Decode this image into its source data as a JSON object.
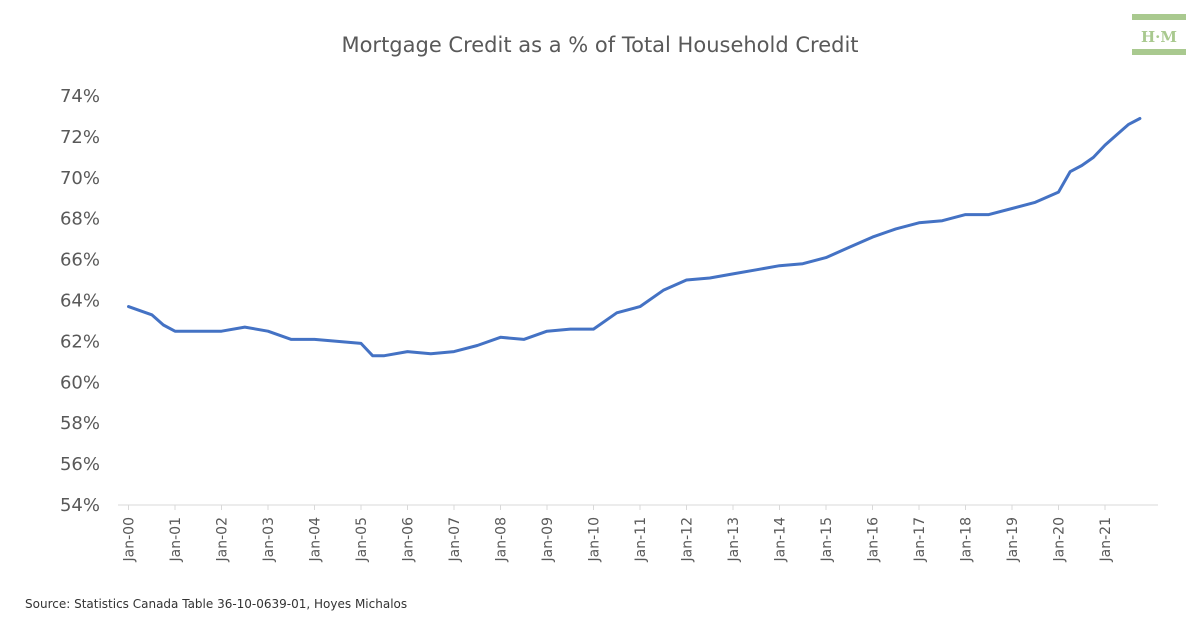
{
  "chart_data": {
    "type": "line",
    "title": "Mortgage Credit as a % of Total Household Credit",
    "xlabel": "",
    "ylabel": "",
    "ylim": [
      54,
      74
    ],
    "y_ticks": [
      54,
      56,
      58,
      60,
      62,
      64,
      66,
      68,
      70,
      72,
      74
    ],
    "y_tick_format": "%",
    "x_ticks": [
      "Jan-00",
      "Jan-01",
      "Jan-02",
      "Jan-03",
      "Jan-04",
      "Jan-05",
      "Jan-06",
      "Jan-07",
      "Jan-08",
      "Jan-09",
      "Jan-10",
      "Jan-11",
      "Jan-12",
      "Jan-13",
      "Jan-14",
      "Jan-15",
      "Jan-16",
      "Jan-17",
      "Jan-18",
      "Jan-19",
      "Jan-20",
      "Jan-21"
    ],
    "grid": false,
    "legend": "none",
    "series": [
      {
        "color": "#4472C4",
        "points": [
          [
            "Jan-00",
            63.7
          ],
          [
            "Apr-00",
            63.5
          ],
          [
            "Jul-00",
            63.3
          ],
          [
            "Oct-00",
            62.8
          ],
          [
            "Jan-01",
            62.5
          ],
          [
            "Jul-01",
            62.5
          ],
          [
            "Jan-02",
            62.5
          ],
          [
            "Jul-02",
            62.7
          ],
          [
            "Jan-03",
            62.5
          ],
          [
            "Jul-03",
            62.1
          ],
          [
            "Jan-04",
            62.1
          ],
          [
            "Jul-04",
            62.0
          ],
          [
            "Jan-05",
            61.9
          ],
          [
            "Apr-05",
            61.3
          ],
          [
            "Jul-05",
            61.3
          ],
          [
            "Jan-06",
            61.5
          ],
          [
            "Jul-06",
            61.4
          ],
          [
            "Jan-07",
            61.5
          ],
          [
            "Jul-07",
            61.8
          ],
          [
            "Jan-08",
            62.2
          ],
          [
            "Jul-08",
            62.1
          ],
          [
            "Jan-09",
            62.5
          ],
          [
            "Jul-09",
            62.6
          ],
          [
            "Jan-10",
            62.6
          ],
          [
            "Jul-10",
            63.4
          ],
          [
            "Jan-11",
            63.7
          ],
          [
            "Jul-11",
            64.5
          ],
          [
            "Jan-12",
            65.0
          ],
          [
            "Jul-12",
            65.1
          ],
          [
            "Jan-13",
            65.3
          ],
          [
            "Jul-13",
            65.5
          ],
          [
            "Jan-14",
            65.7
          ],
          [
            "Jul-14",
            65.8
          ],
          [
            "Jan-15",
            66.1
          ],
          [
            "Jul-15",
            66.6
          ],
          [
            "Jan-16",
            67.1
          ],
          [
            "Jul-16",
            67.5
          ],
          [
            "Jan-17",
            67.8
          ],
          [
            "Jul-17",
            67.9
          ],
          [
            "Jan-18",
            68.2
          ],
          [
            "Jul-18",
            68.2
          ],
          [
            "Jan-19",
            68.5
          ],
          [
            "Jul-19",
            68.8
          ],
          [
            "Jan-20",
            69.3
          ],
          [
            "Apr-20",
            70.3
          ],
          [
            "Jul-20",
            70.6
          ],
          [
            "Oct-20",
            71.0
          ],
          [
            "Jan-21",
            71.6
          ],
          [
            "Apr-21",
            72.1
          ],
          [
            "Jul-21",
            72.6
          ],
          [
            "Oct-21",
            72.9
          ]
        ]
      }
    ]
  },
  "source": "Source: Statistics Canada Table 36-10-0639-01, Hoyes Michalos",
  "logo": {
    "text": "H·M",
    "color": "#A9C98F"
  }
}
